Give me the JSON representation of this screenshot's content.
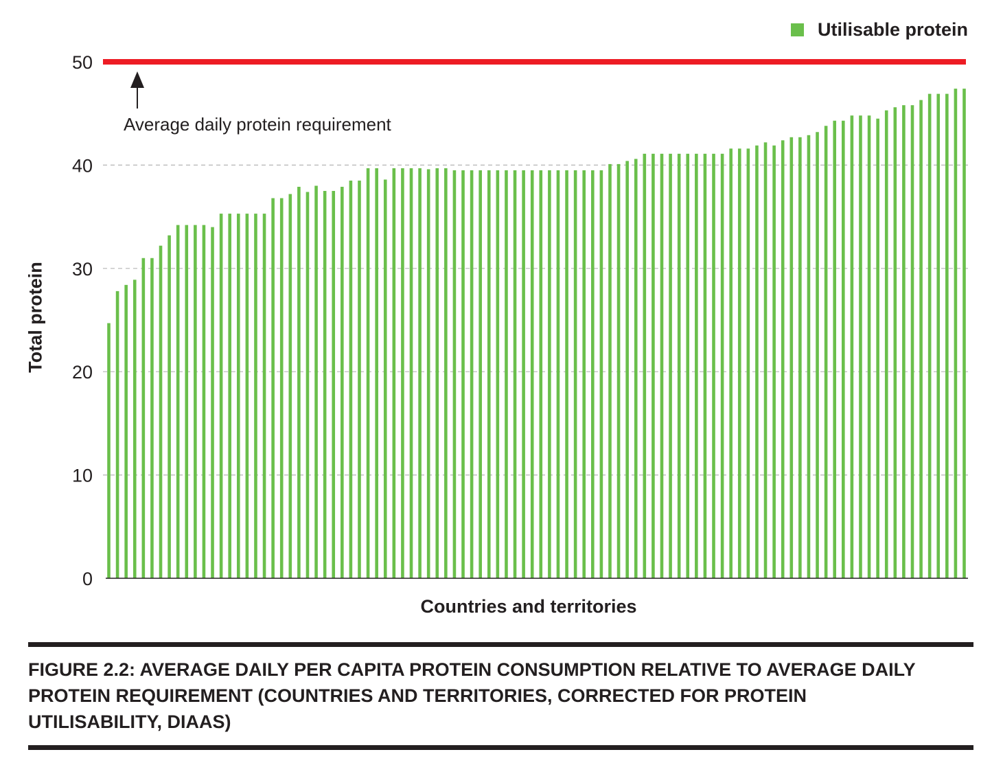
{
  "legend": {
    "label": "Utilisable protein",
    "color": "#6abf4b"
  },
  "reference": {
    "value": 50,
    "label": "Average daily protein requirement",
    "color": "#ed1c24"
  },
  "caption": "FIGURE 2.2: AVERAGE DAILY PER CAPITA PROTEIN CONSUMPTION RELATIVE TO AVERAGE DAILY PROTEIN REQUIREMENT (COUNTRIES AND TERRITORIES, CORRECTED FOR PROTEIN UTILISABILITY, DIAAS)",
  "chart_data": {
    "type": "bar",
    "xlabel": "Countries and territories",
    "ylabel": "Total protein",
    "ylim": [
      0,
      50
    ],
    "yticks": [
      0,
      10,
      20,
      30,
      40,
      50
    ],
    "grid": true,
    "legend_position": "top-right",
    "series": [
      {
        "name": "Utilisable protein",
        "values": [
          24.7,
          27.8,
          28.4,
          28.9,
          31.0,
          31.0,
          32.2,
          33.2,
          34.2,
          34.2,
          34.2,
          34.2,
          34.0,
          35.3,
          35.3,
          35.3,
          35.3,
          35.3,
          35.3,
          36.8,
          36.8,
          37.2,
          37.9,
          37.4,
          38.0,
          37.5,
          37.5,
          37.9,
          38.5,
          38.5,
          39.7,
          39.7,
          38.6,
          39.7,
          39.7,
          39.7,
          39.7,
          39.6,
          39.7,
          39.7,
          39.5,
          39.5,
          39.5,
          39.5,
          39.5,
          39.5,
          39.5,
          39.5,
          39.5,
          39.5,
          39.5,
          39.5,
          39.5,
          39.5,
          39.5,
          39.5,
          39.5,
          39.5,
          40.1,
          40.1,
          40.4,
          40.6,
          41.1,
          41.1,
          41.1,
          41.1,
          41.1,
          41.1,
          41.1,
          41.1,
          41.1,
          41.1,
          41.6,
          41.6,
          41.6,
          41.9,
          42.2,
          41.9,
          42.4,
          42.7,
          42.7,
          42.9,
          43.2,
          43.8,
          44.3,
          44.3,
          44.8,
          44.8,
          44.8,
          44.5,
          45.3,
          45.6,
          45.8,
          45.8,
          46.3,
          46.9,
          46.9,
          46.9,
          47.4,
          47.4
        ]
      }
    ]
  }
}
